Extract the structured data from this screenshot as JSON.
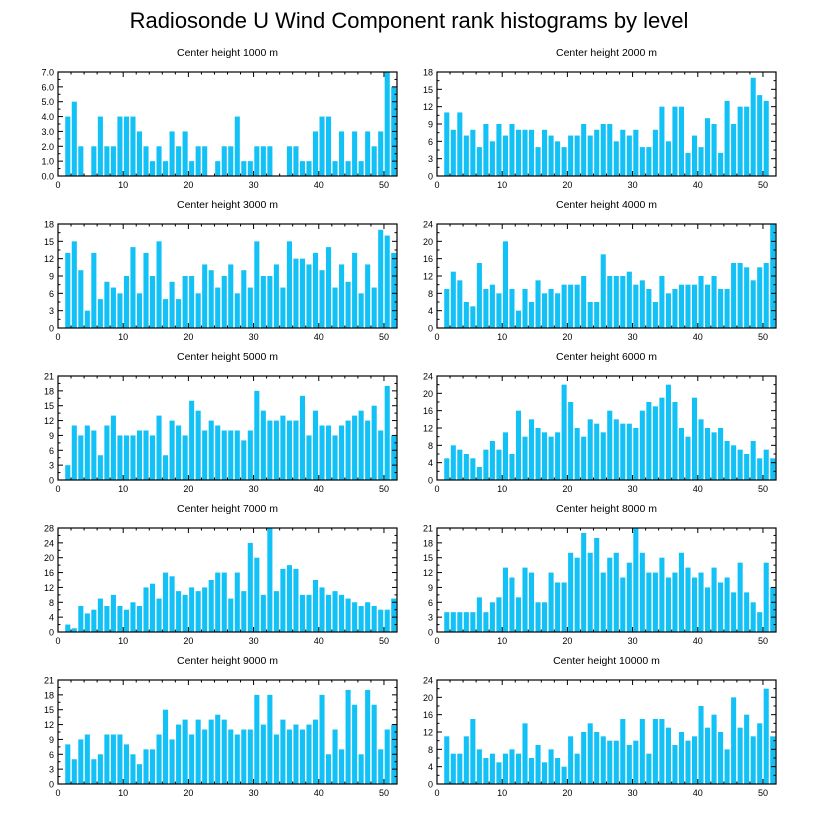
{
  "title": "Radiosonde U Wind Component rank histograms by level",
  "colors": {
    "bar": "#12C1F5",
    "axis": "#000000",
    "background": "#FFFFFF"
  },
  "chart_data": [
    {
      "type": "bar",
      "title": "Center height 1000 m",
      "ylim": [
        0,
        7
      ],
      "yticks": [
        0,
        1,
        2,
        3,
        4,
        5,
        6,
        7
      ],
      "ytick_labels": [
        "0.0",
        "1.0",
        "2.0",
        "3.0",
        "4.0",
        "5.0",
        "6.0",
        "7.0"
      ],
      "xlim": [
        0,
        52
      ],
      "xticks": [
        0,
        10,
        20,
        30,
        40,
        50
      ],
      "values": [
        0,
        4,
        5,
        2,
        0,
        2,
        4,
        2,
        2,
        4,
        4,
        4,
        3,
        2,
        1,
        2,
        1,
        3,
        2,
        3,
        1,
        2,
        2,
        0,
        1,
        2,
        2,
        4,
        1,
        1,
        2,
        2,
        2,
        0,
        0,
        2,
        2,
        1,
        1,
        3,
        4,
        4,
        1,
        3,
        1,
        3,
        1,
        3,
        2,
        3,
        7,
        6
      ]
    },
    {
      "type": "bar",
      "title": "Center height 2000 m",
      "ylim": [
        0,
        18
      ],
      "yticks": [
        0,
        3,
        6,
        9,
        12,
        15,
        18
      ],
      "ytick_labels": [
        "0",
        "3",
        "6",
        "9",
        "12",
        "15",
        "18"
      ],
      "xlim": [
        0,
        52
      ],
      "xticks": [
        0,
        10,
        20,
        30,
        40,
        50
      ],
      "values": [
        0,
        11,
        8,
        11,
        7,
        8,
        5,
        9,
        6,
        9,
        7,
        9,
        8,
        8,
        8,
        5,
        8,
        7,
        6,
        5,
        7,
        7,
        9,
        7,
        8,
        9,
        9,
        6,
        8,
        7,
        8,
        5,
        5,
        8,
        12,
        6,
        12,
        12,
        4,
        7,
        5,
        10,
        9,
        4,
        13,
        9,
        12,
        12,
        17,
        14,
        13,
        0
      ]
    },
    {
      "type": "bar",
      "title": "Center height 3000 m",
      "ylim": [
        0,
        18
      ],
      "yticks": [
        0,
        3,
        6,
        9,
        12,
        15,
        18
      ],
      "ytick_labels": [
        "0",
        "3",
        "6",
        "9",
        "12",
        "15",
        "18"
      ],
      "xlim": [
        0,
        52
      ],
      "xticks": [
        0,
        10,
        20,
        30,
        40,
        50
      ],
      "values": [
        0,
        13,
        15,
        10,
        3,
        13,
        5,
        8,
        7,
        6,
        9,
        14,
        6,
        13,
        9,
        15,
        5,
        8,
        5,
        9,
        9,
        6,
        11,
        10,
        7,
        9,
        11,
        6,
        10,
        7,
        15,
        9,
        9,
        11,
        7,
        15,
        12,
        12,
        11,
        13,
        10,
        14,
        7,
        11,
        8,
        13,
        6,
        11,
        7,
        17,
        16,
        13
      ]
    },
    {
      "type": "bar",
      "title": "Center height 4000 m",
      "ylim": [
        0,
        24
      ],
      "yticks": [
        0,
        4,
        8,
        12,
        16,
        20,
        24
      ],
      "ytick_labels": [
        "0",
        "4",
        "8",
        "12",
        "16",
        "20",
        "24"
      ],
      "xlim": [
        0,
        52
      ],
      "xticks": [
        0,
        10,
        20,
        30,
        40,
        50
      ],
      "values": [
        0,
        9,
        13,
        11,
        6,
        5,
        15,
        9,
        10,
        8,
        20,
        9,
        4,
        9,
        6,
        11,
        8,
        9,
        8,
        10,
        10,
        10,
        12,
        6,
        6,
        17,
        12,
        12,
        12,
        13,
        10,
        11,
        9,
        6,
        12,
        8,
        9,
        10,
        10,
        10,
        12,
        10,
        12,
        9,
        9,
        15,
        15,
        14,
        11,
        14,
        15,
        24
      ]
    },
    {
      "type": "bar",
      "title": "Center height 5000 m",
      "ylim": [
        0,
        21
      ],
      "yticks": [
        0,
        3,
        6,
        9,
        12,
        15,
        18,
        21
      ],
      "ytick_labels": [
        "0",
        "3",
        "6",
        "9",
        "12",
        "15",
        "18",
        "21"
      ],
      "xlim": [
        0,
        52
      ],
      "xticks": [
        0,
        10,
        20,
        30,
        40,
        50
      ],
      "values": [
        0,
        3,
        11,
        9,
        11,
        10,
        5,
        11,
        13,
        9,
        9,
        9,
        10,
        10,
        9,
        13,
        5,
        12,
        11,
        9,
        16,
        14,
        10,
        12,
        11,
        10,
        10,
        10,
        8,
        10,
        18,
        14,
        12,
        12,
        13,
        12,
        12,
        17,
        9,
        14,
        11,
        11,
        9,
        11,
        12,
        13,
        14,
        12,
        15,
        10,
        19,
        9
      ]
    },
    {
      "type": "bar",
      "title": "Center height 6000 m",
      "ylim": [
        0,
        24
      ],
      "yticks": [
        0,
        4,
        8,
        12,
        16,
        20,
        24
      ],
      "ytick_labels": [
        "0",
        "4",
        "8",
        "12",
        "16",
        "20",
        "24"
      ],
      "xlim": [
        0,
        52
      ],
      "xticks": [
        0,
        10,
        20,
        30,
        40,
        50
      ],
      "values": [
        0,
        5,
        8,
        7,
        6,
        5,
        3,
        7,
        9,
        7,
        11,
        6,
        16,
        10,
        14,
        12,
        11,
        10,
        11,
        22,
        18,
        12,
        10,
        14,
        13,
        11,
        16,
        14,
        13,
        13,
        12,
        16,
        18,
        17,
        19,
        22,
        18,
        12,
        10,
        19,
        14,
        12,
        11,
        12,
        9,
        8,
        7,
        6,
        9,
        5,
        7,
        5
      ]
    },
    {
      "type": "bar",
      "title": "Center height 7000 m",
      "ylim": [
        0,
        28
      ],
      "yticks": [
        0,
        4,
        8,
        12,
        16,
        20,
        24,
        28
      ],
      "ytick_labels": [
        "0",
        "4",
        "8",
        "12",
        "16",
        "20",
        "24",
        "28"
      ],
      "xlim": [
        0,
        52
      ],
      "xticks": [
        0,
        10,
        20,
        30,
        40,
        50
      ],
      "values": [
        0,
        2,
        1,
        7,
        5,
        6,
        9,
        7,
        10,
        7,
        6,
        8,
        7,
        12,
        13,
        9,
        16,
        15,
        11,
        10,
        12,
        11,
        12,
        14,
        16,
        16,
        9,
        16,
        11,
        24,
        20,
        10,
        28,
        11,
        17,
        18,
        17,
        10,
        10,
        14,
        12,
        10,
        11,
        10,
        9,
        8,
        7,
        8,
        7,
        6,
        6,
        9
      ]
    },
    {
      "type": "bar",
      "title": "Center height 8000 m",
      "ylim": [
        0,
        21
      ],
      "yticks": [
        0,
        3,
        6,
        9,
        12,
        15,
        18,
        21
      ],
      "ytick_labels": [
        "0",
        "3",
        "6",
        "9",
        "12",
        "15",
        "18",
        "21"
      ],
      "xlim": [
        0,
        52
      ],
      "xticks": [
        0,
        10,
        20,
        30,
        40,
        50
      ],
      "values": [
        0,
        4,
        4,
        4,
        4,
        4,
        7,
        4,
        6,
        7,
        13,
        11,
        7,
        13,
        12,
        6,
        6,
        12,
        10,
        10,
        16,
        15,
        20,
        16,
        19,
        12,
        15,
        16,
        11,
        14,
        21,
        16,
        12,
        12,
        15,
        11,
        12,
        16,
        13,
        11,
        12,
        9,
        13,
        10,
        11,
        8,
        14,
        8,
        6,
        4,
        14,
        9
      ]
    },
    {
      "type": "bar",
      "title": "Center height 9000 m",
      "ylim": [
        0,
        21
      ],
      "yticks": [
        0,
        3,
        6,
        9,
        12,
        15,
        18,
        21
      ],
      "ytick_labels": [
        "0",
        "3",
        "6",
        "9",
        "12",
        "15",
        "18",
        "21"
      ],
      "xlim": [
        0,
        52
      ],
      "xticks": [
        0,
        10,
        20,
        30,
        40,
        50
      ],
      "values": [
        0,
        8,
        5,
        9,
        10,
        5,
        6,
        10,
        10,
        10,
        8,
        6,
        4,
        7,
        7,
        10,
        15,
        9,
        12,
        13,
        10,
        13,
        11,
        13,
        14,
        13,
        11,
        10,
        11,
        11,
        18,
        12,
        18,
        10,
        13,
        11,
        12,
        11,
        12,
        13,
        18,
        6,
        11,
        7,
        19,
        16,
        6,
        19,
        16,
        7,
        11,
        12
      ]
    },
    {
      "type": "bar",
      "title": "Center height 10000 m",
      "ylim": [
        0,
        24
      ],
      "yticks": [
        0,
        4,
        8,
        12,
        16,
        20,
        24
      ],
      "ytick_labels": [
        "0",
        "4",
        "8",
        "12",
        "16",
        "20",
        "24"
      ],
      "xlim": [
        0,
        52
      ],
      "xticks": [
        0,
        10,
        20,
        30,
        40,
        50
      ],
      "values": [
        0,
        11,
        7,
        7,
        11,
        15,
        8,
        6,
        7,
        5,
        7,
        8,
        7,
        14,
        6,
        9,
        5,
        8,
        6,
        4,
        11,
        7,
        12,
        14,
        12,
        11,
        10,
        10,
        15,
        9,
        10,
        15,
        7,
        15,
        15,
        13,
        9,
        12,
        10,
        11,
        18,
        13,
        16,
        12,
        8,
        20,
        13,
        16,
        11,
        14,
        22,
        11
      ]
    }
  ]
}
